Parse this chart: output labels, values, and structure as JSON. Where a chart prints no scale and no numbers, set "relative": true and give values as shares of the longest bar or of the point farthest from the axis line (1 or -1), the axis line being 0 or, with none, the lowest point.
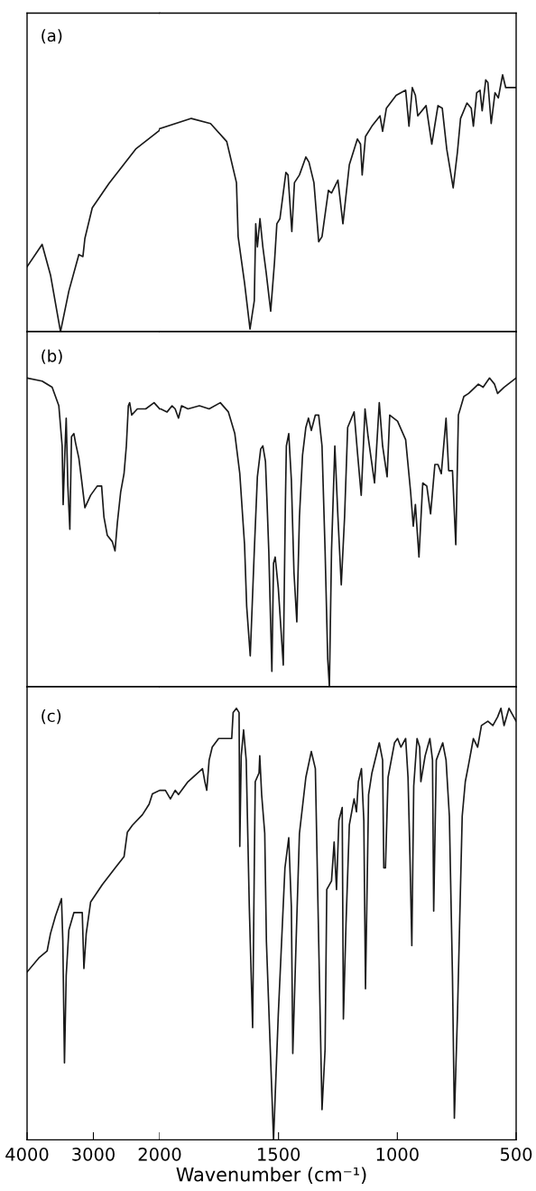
{
  "chart_data": [
    {
      "type": "line",
      "relative": true,
      "xlim": [
        4000,
        2000
      ],
      "xticks": [
        4000,
        3000,
        2000
      ],
      "tick_labels": false,
      "annotations": [
        "(a)"
      ],
      "series": [
        {
          "color": "#1a1a1a",
          "x": [
            4000,
            3773,
            3647,
            3496,
            3370,
            3219,
            3158,
            3128,
            3017,
            2765,
            2362,
            2009,
            2000
          ],
          "values": [
            0.32,
            0.43,
            0.28,
            0.0,
            0.2,
            0.38,
            0.37,
            0.46,
            0.61,
            0.73,
            0.9,
            0.99,
            1.0
          ]
        }
      ]
    },
    {
      "type": "line",
      "relative": true,
      "xlim": [
        2000,
        500
      ],
      "xticks": [
        1500,
        1000,
        500
      ],
      "tick_labels": false,
      "series": [
        {
          "color": "#1a1a1a",
          "x": [
            2000,
            1867,
            1786,
            1718,
            1677,
            1670,
            1643,
            1620,
            1602,
            1596,
            1589,
            1578,
            1566,
            1552,
            1533,
            1517,
            1507,
            1494,
            1469,
            1460,
            1444,
            1433,
            1412,
            1385,
            1372,
            1351,
            1331,
            1317,
            1290,
            1277,
            1250,
            1229,
            1202,
            1168,
            1155,
            1148,
            1134,
            1107,
            1073,
            1062,
            1046,
            1005,
            965,
            951,
            937,
            924,
            914,
            879,
            855,
            829,
            811,
            792,
            765,
            747,
            734,
            707,
            689,
            680,
            666,
            652,
            643,
            628,
            619,
            605,
            589,
            575,
            557,
            544,
            500
          ],
          "values": [
            0.79,
            0.83,
            0.81,
            0.74,
            0.58,
            0.37,
            0.19,
            0.01,
            0.12,
            0.42,
            0.33,
            0.44,
            0.33,
            0.23,
            0.08,
            0.27,
            0.42,
            0.44,
            0.62,
            0.61,
            0.39,
            0.58,
            0.61,
            0.68,
            0.66,
            0.58,
            0.35,
            0.37,
            0.55,
            0.54,
            0.59,
            0.42,
            0.65,
            0.75,
            0.73,
            0.61,
            0.76,
            0.8,
            0.84,
            0.78,
            0.87,
            0.92,
            0.94,
            0.8,
            0.95,
            0.92,
            0.84,
            0.88,
            0.73,
            0.88,
            0.87,
            0.71,
            0.56,
            0.7,
            0.83,
            0.89,
            0.87,
            0.8,
            0.93,
            0.94,
            0.86,
            0.98,
            0.97,
            0.81,
            0.93,
            0.91,
            1.0,
            0.95,
            0.95
          ]
        }
      ]
    },
    {
      "type": "line",
      "relative": true,
      "xlim": [
        4000,
        2000
      ],
      "xticks": [
        4000,
        3000,
        2000
      ],
      "tick_labels": false,
      "annotations": [
        "(b)"
      ],
      "series": [
        {
          "color": "#1a1a1a",
          "x": [
            4000,
            3773,
            3622,
            3521,
            3471,
            3456,
            3430,
            3410,
            3385,
            3355,
            3330,
            3294,
            3269,
            3219,
            3178,
            3128,
            3042,
            2942,
            2876,
            2841,
            2790,
            2715,
            2674,
            2639,
            2589,
            2538,
            2503,
            2473,
            2453,
            2422,
            2337,
            2211,
            2085,
            2000
          ],
          "values": [
            1.0,
            0.99,
            0.97,
            0.91,
            0.78,
            0.59,
            0.76,
            0.87,
            0.65,
            0.51,
            0.81,
            0.82,
            0.79,
            0.74,
            0.67,
            0.58,
            0.62,
            0.65,
            0.65,
            0.55,
            0.49,
            0.47,
            0.44,
            0.53,
            0.63,
            0.69,
            0.78,
            0.91,
            0.92,
            0.88,
            0.9,
            0.9,
            0.92,
            0.9
          ]
        }
      ]
    },
    {
      "type": "line",
      "relative": true,
      "xlim": [
        2000,
        500
      ],
      "xticks": [
        1500,
        1000,
        500
      ],
      "tick_labels": false,
      "series": [
        {
          "color": "#1a1a1a",
          "x": [
            2000,
            1996,
            1969,
            1948,
            1935,
            1921,
            1908,
            1881,
            1833,
            1792,
            1745,
            1711,
            1684,
            1663,
            1643,
            1634,
            1619,
            1602,
            1589,
            1575,
            1566,
            1555,
            1548,
            1541,
            1528,
            1521,
            1514,
            1501,
            1480,
            1471,
            1467,
            1457,
            1446,
            1435,
            1423,
            1412,
            1399,
            1385,
            1374,
            1362,
            1345,
            1331,
            1317,
            1304,
            1293,
            1286,
            1277,
            1263,
            1250,
            1236,
            1222,
            1209,
            1182,
            1168,
            1152,
            1136,
            1123,
            1096,
            1076,
            1062,
            1043,
            1032,
            999,
            965,
            944,
            933,
            924,
            909,
            893,
            876,
            860,
            842,
            829,
            815,
            795,
            784,
            768,
            754,
            743,
            720,
            700,
            673,
            659,
            639,
            612,
            591,
            578,
            551,
            500
          ],
          "values": [
            0.9,
            0.9,
            0.89,
            0.91,
            0.9,
            0.87,
            0.91,
            0.9,
            0.91,
            0.9,
            0.92,
            0.89,
            0.82,
            0.69,
            0.46,
            0.26,
            0.1,
            0.44,
            0.68,
            0.77,
            0.78,
            0.73,
            0.59,
            0.44,
            0.05,
            0.4,
            0.42,
            0.32,
            0.07,
            0.6,
            0.78,
            0.82,
            0.67,
            0.37,
            0.21,
            0.55,
            0.75,
            0.84,
            0.87,
            0.83,
            0.88,
            0.88,
            0.78,
            0.44,
            0.09,
            0.0,
            0.44,
            0.78,
            0.55,
            0.33,
            0.55,
            0.84,
            0.89,
            0.76,
            0.62,
            0.9,
            0.81,
            0.66,
            0.92,
            0.78,
            0.68,
            0.88,
            0.86,
            0.8,
            0.63,
            0.52,
            0.59,
            0.42,
            0.66,
            0.65,
            0.56,
            0.72,
            0.72,
            0.69,
            0.87,
            0.7,
            0.7,
            0.46,
            0.88,
            0.94,
            0.95,
            0.97,
            0.98,
            0.97,
            1.0,
            0.98,
            0.95,
            0.97,
            1.0
          ]
        }
      ]
    },
    {
      "type": "line",
      "relative": true,
      "xlim": [
        4000,
        2000
      ],
      "xticks": [
        4000,
        3000,
        2000
      ],
      "tick_labels": "x",
      "annotations": [
        "(c)"
      ],
      "series": [
        {
          "color": "#1a1a1a",
          "x": [
            4000,
            3824,
            3698,
            3647,
            3572,
            3481,
            3461,
            3436,
            3410,
            3370,
            3294,
            3168,
            3143,
            3108,
            3042,
            2866,
            2664,
            2538,
            2488,
            2412,
            2261,
            2160,
            2110,
            2000
          ],
          "values": [
            0.48,
            0.52,
            0.54,
            0.59,
            0.64,
            0.69,
            0.57,
            0.22,
            0.47,
            0.6,
            0.65,
            0.65,
            0.49,
            0.59,
            0.68,
            0.73,
            0.78,
            0.81,
            0.88,
            0.9,
            0.93,
            0.96,
            0.99,
            1.0
          ]
        }
      ]
    },
    {
      "type": "line",
      "relative": true,
      "xlim": [
        2000,
        500
      ],
      "xticks": [
        1500,
        1000,
        500
      ],
      "tick_labels": "x",
      "xlabel": "Wavenumber (cm⁻¹)",
      "series": [
        {
          "color": "#1a1a1a",
          "x": [
            2000,
            1989,
            1976,
            1955,
            1935,
            1921,
            1881,
            1820,
            1810,
            1802,
            1792,
            1779,
            1752,
            1718,
            1697,
            1691,
            1677,
            1666,
            1663,
            1657,
            1647,
            1636,
            1623,
            1609,
            1602,
            1598,
            1582,
            1579,
            1571,
            1558,
            1551,
            1521,
            1501,
            1473,
            1457,
            1446,
            1440,
            1426,
            1412,
            1385,
            1362,
            1345,
            1331,
            1317,
            1304,
            1297,
            1277,
            1266,
            1256,
            1246,
            1232,
            1227,
            1216,
            1202,
            1182,
            1172,
            1164,
            1151,
            1141,
            1134,
            1121,
            1107,
            1076,
            1062,
            1057,
            1050,
            1039,
            1012,
            999,
            985,
            965,
            955,
            947,
            939,
            931,
            917,
            906,
            901,
            883,
            863,
            852,
            847,
            836,
            809,
            795,
            781,
            768,
            760,
            747,
            727,
            714,
            700,
            680,
            662,
            646,
            619,
            598,
            578,
            564,
            551,
            530,
            500
          ],
          "values": [
            0.81,
            0.81,
            0.81,
            0.79,
            0.81,
            0.8,
            0.83,
            0.86,
            0.83,
            0.81,
            0.88,
            0.91,
            0.93,
            0.93,
            0.93,
            0.99,
            1.0,
            0.99,
            0.68,
            0.89,
            0.95,
            0.88,
            0.54,
            0.26,
            0.63,
            0.83,
            0.85,
            0.89,
            0.8,
            0.71,
            0.46,
            0.0,
            0.29,
            0.63,
            0.7,
            0.54,
            0.2,
            0.46,
            0.71,
            0.84,
            0.9,
            0.86,
            0.46,
            0.07,
            0.21,
            0.58,
            0.6,
            0.69,
            0.58,
            0.74,
            0.77,
            0.28,
            0.5,
            0.73,
            0.79,
            0.76,
            0.83,
            0.86,
            0.74,
            0.35,
            0.8,
            0.85,
            0.92,
            0.88,
            0.63,
            0.63,
            0.84,
            0.92,
            0.93,
            0.91,
            0.93,
            0.84,
            0.66,
            0.45,
            0.82,
            0.93,
            0.91,
            0.83,
            0.89,
            0.93,
            0.88,
            0.53,
            0.88,
            0.92,
            0.88,
            0.75,
            0.38,
            0.05,
            0.29,
            0.75,
            0.83,
            0.87,
            0.93,
            0.91,
            0.96,
            0.97,
            0.96,
            0.98,
            1.0,
            0.96,
            1.0,
            0.97
          ]
        }
      ]
    }
  ]
}
